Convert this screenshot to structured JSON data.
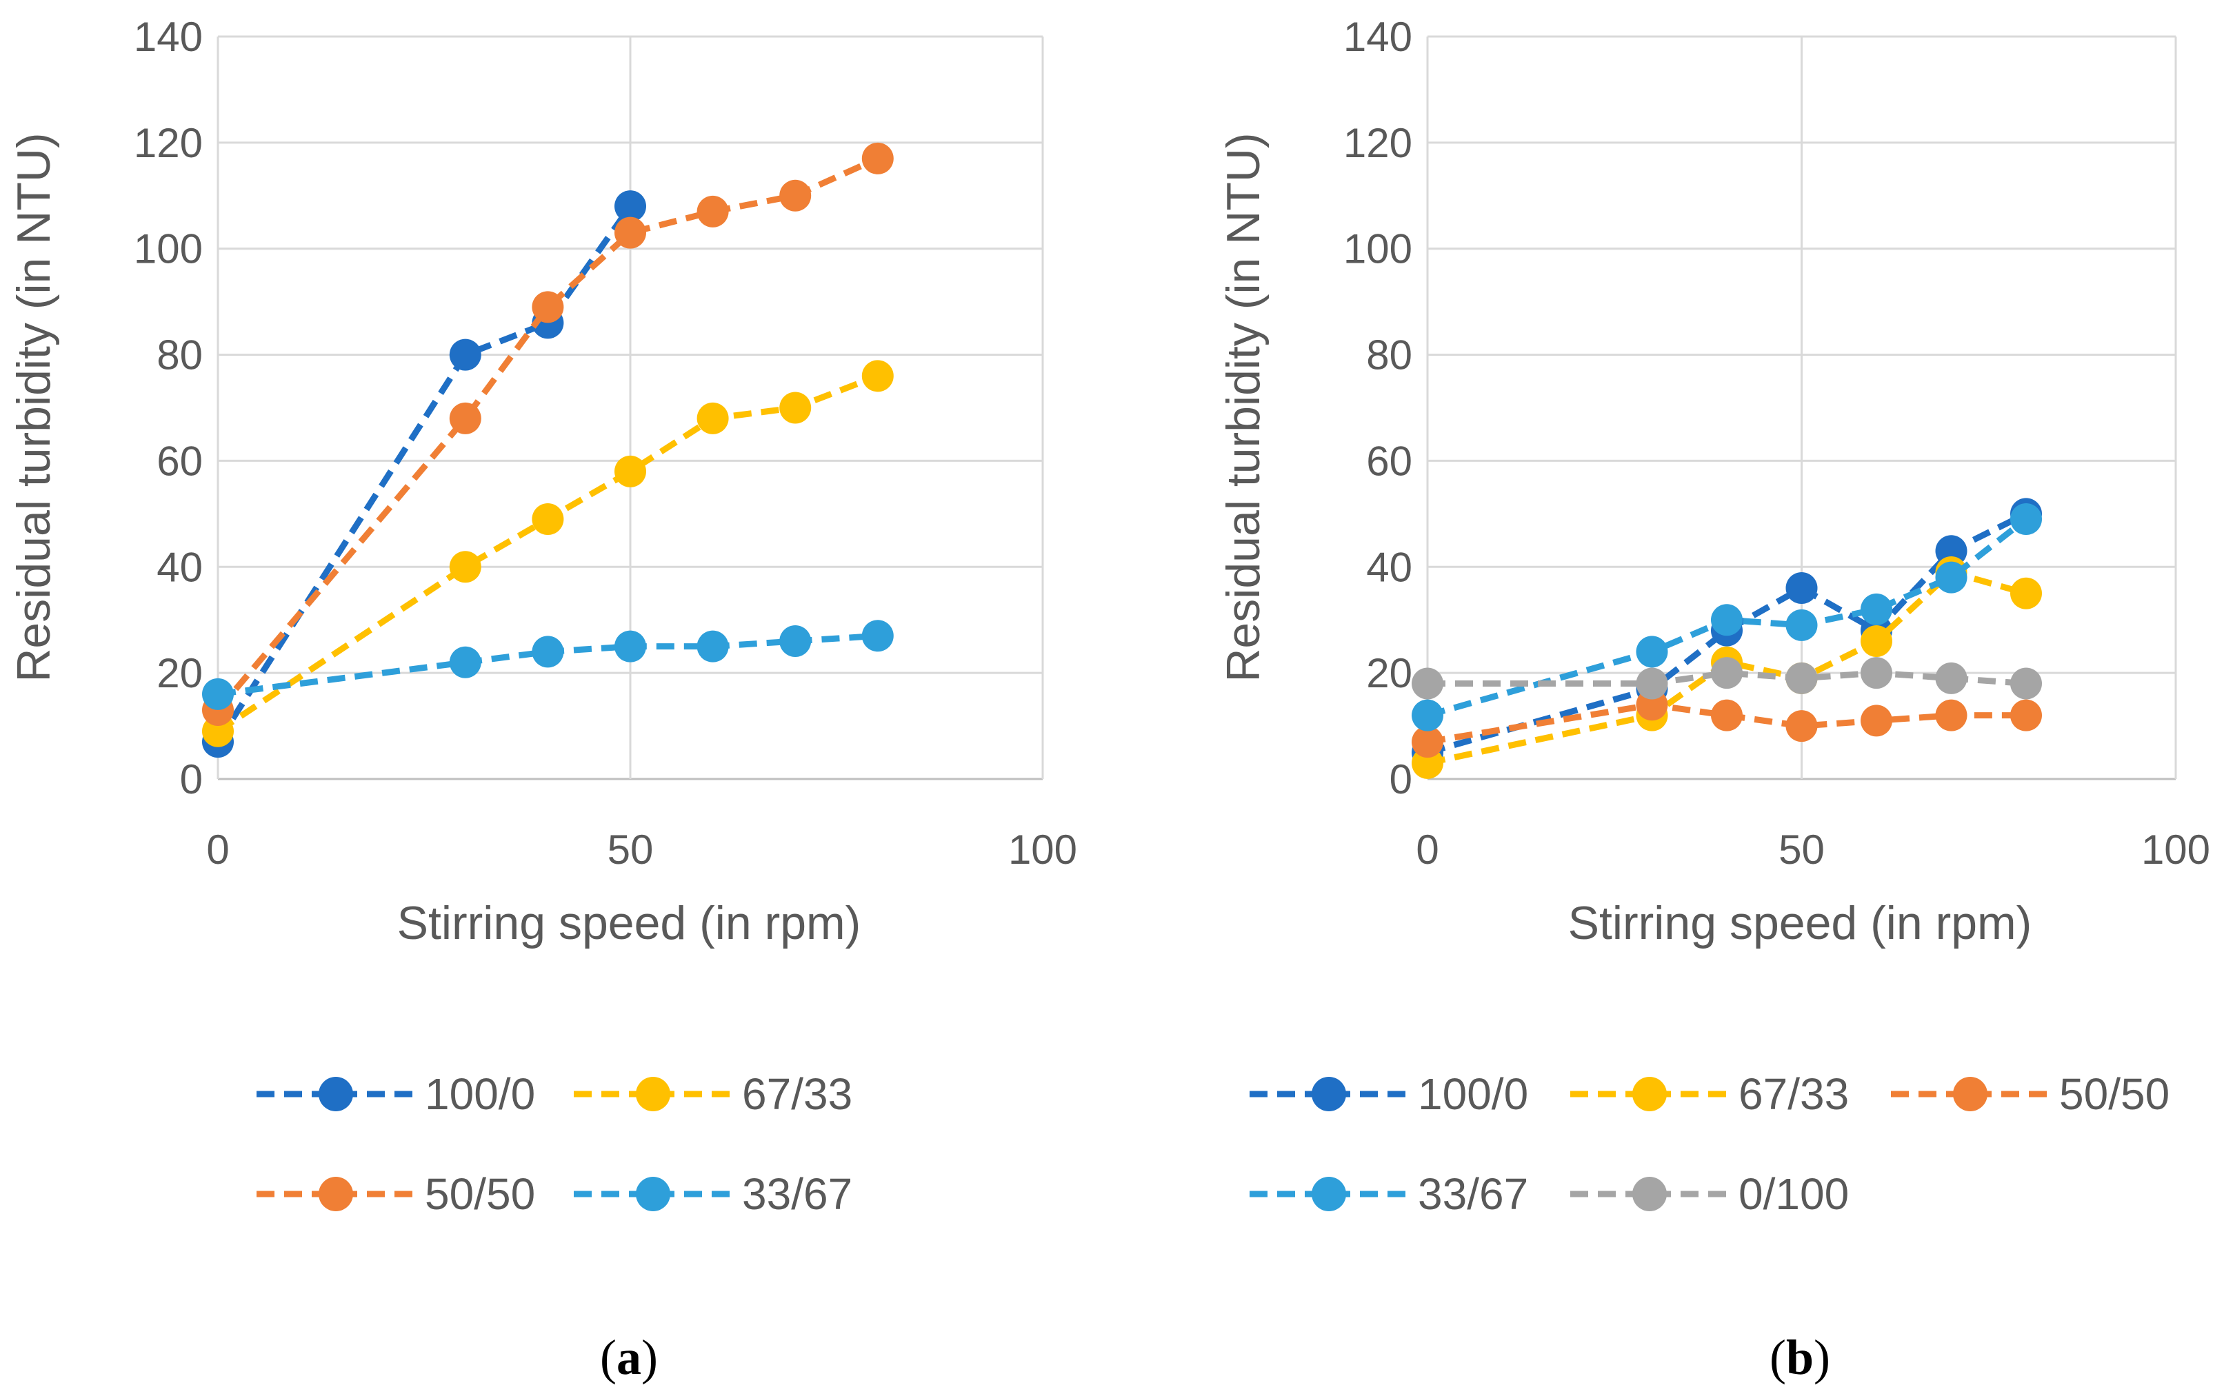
{
  "chart_data": [
    {
      "type": "line",
      "panel_label": "a",
      "xlabel": "Stirring speed (in rpm)",
      "ylabel": "Residual turbidity (in NTU)",
      "xlim": [
        0,
        100
      ],
      "ylim": [
        0,
        140
      ],
      "xticks": [
        0,
        50,
        100
      ],
      "yticks": [
        0,
        20,
        40,
        60,
        80,
        100,
        120,
        140
      ],
      "grid": true,
      "x": [
        0,
        30,
        40,
        50,
        60,
        70,
        80
      ],
      "series": [
        {
          "name": "100/0",
          "color": "#1F6FC5",
          "x": [
            0,
            30,
            40,
            50
          ],
          "values": [
            7,
            80,
            86,
            108
          ]
        },
        {
          "name": "67/33",
          "color": "#FFC000",
          "x": [
            0,
            30,
            40,
            50,
            60,
            70,
            80
          ],
          "values": [
            9,
            40,
            49,
            58,
            68,
            70,
            76
          ]
        },
        {
          "name": "50/50",
          "color": "#F07F35",
          "x": [
            0,
            30,
            40,
            50,
            60,
            70,
            80
          ],
          "values": [
            13,
            68,
            89,
            103,
            107,
            110,
            117
          ]
        },
        {
          "name": "33/67",
          "color": "#2E9FDA",
          "x": [
            0,
            30,
            40,
            50,
            60,
            70,
            80
          ],
          "values": [
            16,
            22,
            24,
            25,
            25,
            26,
            27
          ]
        }
      ],
      "legend_rows": [
        [
          "100/0",
          "67/33"
        ],
        [
          "50/50",
          "33/67"
        ]
      ]
    },
    {
      "type": "line",
      "panel_label": "b",
      "xlabel": "Stirring speed (in rpm)",
      "ylabel": "Residual turbidity (in NTU)",
      "xlim": [
        0,
        100
      ],
      "ylim": [
        0,
        140
      ],
      "xticks": [
        0,
        50,
        100
      ],
      "yticks": [
        0,
        20,
        40,
        60,
        80,
        100,
        120,
        140
      ],
      "grid": true,
      "x": [
        0,
        30,
        40,
        50,
        60,
        70,
        80
      ],
      "series": [
        {
          "name": "100/0",
          "color": "#1F6FC5",
          "x": [
            0,
            30,
            40,
            50,
            60,
            70,
            80
          ],
          "values": [
            5,
            17,
            28,
            36,
            28,
            43,
            50
          ]
        },
        {
          "name": "67/33",
          "color": "#FFC000",
          "x": [
            0,
            30,
            40,
            50,
            60,
            70,
            80
          ],
          "values": [
            3,
            12,
            22,
            19,
            26,
            39,
            35
          ]
        },
        {
          "name": "50/50",
          "color": "#F07F35",
          "x": [
            0,
            30,
            40,
            50,
            60,
            70,
            80
          ],
          "values": [
            7,
            14,
            12,
            10,
            11,
            12,
            12
          ]
        },
        {
          "name": "33/67",
          "color": "#2E9FDA",
          "x": [
            0,
            30,
            40,
            50,
            60,
            70,
            80
          ],
          "values": [
            12,
            24,
            30,
            29,
            32,
            38,
            49
          ]
        },
        {
          "name": "0/100",
          "color": "#A5A5A5",
          "x": [
            0,
            30,
            40,
            50,
            60,
            70,
            80
          ],
          "values": [
            18,
            18,
            20,
            19,
            20,
            19,
            18
          ]
        }
      ],
      "legend_rows": [
        [
          "100/0",
          "67/33",
          "50/50"
        ],
        [
          "33/67",
          "0/100"
        ]
      ]
    }
  ]
}
